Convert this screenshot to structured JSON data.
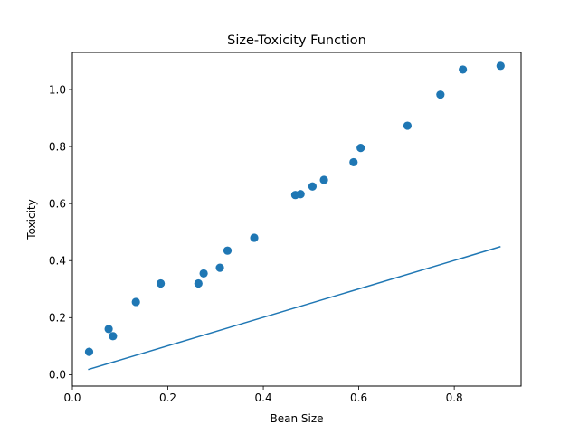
{
  "chart_data": {
    "type": "scatter",
    "title": "Size-Toxicity Function",
    "xlabel": "Bean Size",
    "ylabel": "Toxicity",
    "xlim": [
      -0.0,
      0.94
    ],
    "ylim": [
      -0.04,
      1.13
    ],
    "xticks": [
      0.0,
      0.2,
      0.4,
      0.6,
      0.8
    ],
    "xtick_labels": [
      "0.0",
      "0.2",
      "0.4",
      "0.6",
      "0.8"
    ],
    "yticks": [
      0.0,
      0.2,
      0.4,
      0.6,
      0.8,
      1.0
    ],
    "ytick_labels": [
      "0.0",
      "0.2",
      "0.4",
      "0.6",
      "0.8",
      "1.0"
    ],
    "grid": false,
    "color": "#1f77b4",
    "points": [
      {
        "x": 0.035,
        "y": 0.08
      },
      {
        "x": 0.076,
        "y": 0.16
      },
      {
        "x": 0.085,
        "y": 0.135
      },
      {
        "x": 0.133,
        "y": 0.255
      },
      {
        "x": 0.185,
        "y": 0.32
      },
      {
        "x": 0.264,
        "y": 0.32
      },
      {
        "x": 0.275,
        "y": 0.355
      },
      {
        "x": 0.309,
        "y": 0.375
      },
      {
        "x": 0.325,
        "y": 0.435
      },
      {
        "x": 0.381,
        "y": 0.48
      },
      {
        "x": 0.467,
        "y": 0.63
      },
      {
        "x": 0.478,
        "y": 0.633
      },
      {
        "x": 0.503,
        "y": 0.66
      },
      {
        "x": 0.527,
        "y": 0.683
      },
      {
        "x": 0.589,
        "y": 0.745
      },
      {
        "x": 0.604,
        "y": 0.795
      },
      {
        "x": 0.702,
        "y": 0.873
      },
      {
        "x": 0.771,
        "y": 0.982
      },
      {
        "x": 0.818,
        "y": 1.07
      },
      {
        "x": 0.897,
        "y": 1.083
      }
    ],
    "line": {
      "x": [
        0.033,
        0.897
      ],
      "y": [
        0.018,
        0.449
      ]
    }
  }
}
